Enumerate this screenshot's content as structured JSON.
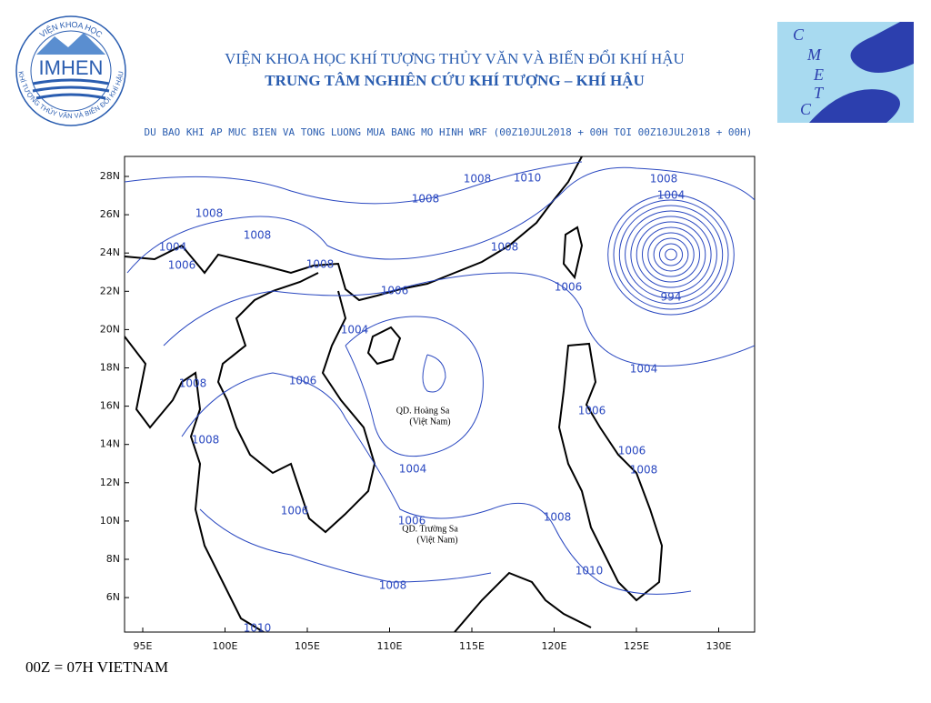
{
  "header": {
    "title": "VIỆN KHOA HỌC KHÍ TƯỢNG THỦY VĂN VÀ BIẾN ĐỔI KHÍ HẬU",
    "subtitle": "TRUNG TÂM NGHIÊN CỨU KHÍ TƯỢNG – KHÍ HẬU"
  },
  "logo_left": {
    "name": "IMHEN",
    "ring_top": "VIỆN KHOA HỌC",
    "ring_bottom": "KHÍ TƯỢNG THỦY VĂN VÀ BIẾN ĐỔI KHÍ HẬU"
  },
  "logo_right": {
    "letters": [
      "C",
      "M",
      "E",
      "T",
      "C"
    ]
  },
  "map": {
    "title": "DU BAO KHI AP MUC BIEN VA TONG LUONG MUA BANG MO HINH WRF (00Z10JUL2018 + 00H TOI 00Z10JUL2018 + 00H)",
    "lat_labels": [
      "28N",
      "26N",
      "24N",
      "22N",
      "20N",
      "18N",
      "16N",
      "14N",
      "12N",
      "10N",
      "8N",
      "6N"
    ],
    "lon_labels": [
      "95E",
      "100E",
      "105E",
      "110E",
      "115E",
      "120E",
      "125E",
      "130E"
    ],
    "contour_labels": [
      "1008",
      "1004",
      "994",
      "1008",
      "1010",
      "1008",
      "1008",
      "1008",
      "1004",
      "1006",
      "1008",
      "1008",
      "1006",
      "1006",
      "1004",
      "1004",
      "1008",
      "1006",
      "1006",
      "1008",
      "1006",
      "1008",
      "1004",
      "1006",
      "1006",
      "1008",
      "1010",
      "1008",
      "1010"
    ],
    "islands": [
      {
        "name": "QD. Hoàng Sa",
        "country": "(Việt Nam)"
      },
      {
        "name": "QD. Trường Sa",
        "country": "(Việt Nam)"
      }
    ]
  },
  "footer": "00Z = 07H VIETNAM"
}
